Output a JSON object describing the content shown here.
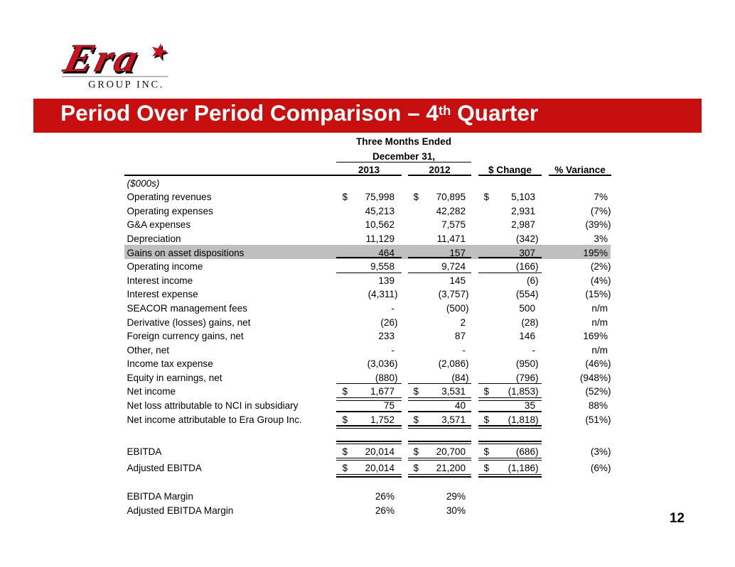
{
  "logo": {
    "brand": "Era",
    "subtitle": "GROUP INC.",
    "star_icon": "star"
  },
  "banner": {
    "title_prefix": "Period Over Period Comparison – 4",
    "title_sup": "th",
    "title_suffix": " Quarter"
  },
  "table": {
    "period_header_line1": "Three Months Ended",
    "period_header_line2": "December 31,",
    "unit_label": "($000s)",
    "columns": [
      "2013",
      "2012",
      "$ Change",
      "% Variance"
    ],
    "rows": [
      {
        "label": "Operating revenues",
        "dollar": true,
        "v": [
          "75,998",
          "70,895",
          "5,103"
        ],
        "variance": "7%"
      },
      {
        "label": "Operating expenses",
        "v": [
          "45,213",
          "42,282",
          "2,931"
        ],
        "variance": "(7%)"
      },
      {
        "label": "G&A expenses",
        "v": [
          "10,562",
          "7,575",
          "2,987"
        ],
        "variance": "(39%)"
      },
      {
        "label": "Depreciation",
        "v": [
          "11,129",
          "11,471",
          "(342)"
        ],
        "variance": "3%"
      },
      {
        "label": "Gains on asset dispositions",
        "v": [
          "464",
          "157",
          "307"
        ],
        "variance": "195%",
        "highlight": true,
        "border": "single"
      },
      {
        "label": "Operating income",
        "v": [
          "9,558",
          "9,724",
          "(166)"
        ],
        "variance": "(2%)",
        "border": "single"
      },
      {
        "label": "Interest income",
        "v": [
          "139",
          "145",
          "(6)"
        ],
        "variance": "(4%)"
      },
      {
        "label": "Interest expense",
        "v": [
          "(4,311)",
          "(3,757)",
          "(554)"
        ],
        "variance": "(15%)"
      },
      {
        "label": "SEACOR management fees",
        "v": [
          "-",
          "(500)",
          "500"
        ],
        "variance": "n/m"
      },
      {
        "label": "Derivative (losses) gains, net",
        "v": [
          "(26)",
          "2",
          "(28)"
        ],
        "variance": "n/m"
      },
      {
        "label": "Foreign currency gains, net",
        "v": [
          "233",
          "87",
          "146"
        ],
        "variance": "169%"
      },
      {
        "label": "Other, net",
        "v": [
          "-",
          "-",
          "-"
        ],
        "variance": "n/m"
      },
      {
        "label": "Income tax expense",
        "v": [
          "(3,036)",
          "(2,086)",
          "(950)"
        ],
        "variance": "(46%)"
      },
      {
        "label": "Equity in earnings, net",
        "v": [
          "(880)",
          "(84)",
          "(796)"
        ],
        "variance": "(948%)",
        "border": "single"
      },
      {
        "label": "Net income",
        "dollar": true,
        "v": [
          "1,677",
          "3,531",
          "(1,853)"
        ],
        "variance": "(52%)",
        "border": "double"
      },
      {
        "label": "Net loss attributable to NCI in subsidiary",
        "v": [
          "75",
          "40",
          "35"
        ],
        "variance": "88%",
        "border": "single"
      },
      {
        "label": "Net income attributable to Era Group Inc.",
        "dollar": true,
        "v": [
          "1,752",
          "3,571",
          "(1,818)"
        ],
        "variance": "(51%)",
        "border": "double"
      }
    ],
    "ebitda_rows": [
      {
        "label": "EBITDA",
        "dollar": true,
        "v": [
          "20,014",
          "20,700",
          "(686)"
        ],
        "variance": "(3%)",
        "border": "double",
        "border_top": "double"
      },
      {
        "label": "Adjusted EBITDA",
        "dollar": true,
        "v": [
          "20,014",
          "21,200",
          "(1,186)"
        ],
        "variance": "(6%)",
        "border": "double"
      }
    ],
    "margin_rows": [
      {
        "label": "EBITDA Margin",
        "v": [
          "26%",
          "29%"
        ]
      },
      {
        "label": "Adjusted EBITDA Margin",
        "v": [
          "26%",
          "30%"
        ]
      }
    ]
  },
  "footer": {
    "page_number": "12"
  },
  "colors": {
    "banner_red": "#c80f0f",
    "logo_red": "#cf1020",
    "highlight_gray": "#bfbfbf",
    "logo_line_gray": "#9b9b9b",
    "text_black": "#000000"
  }
}
